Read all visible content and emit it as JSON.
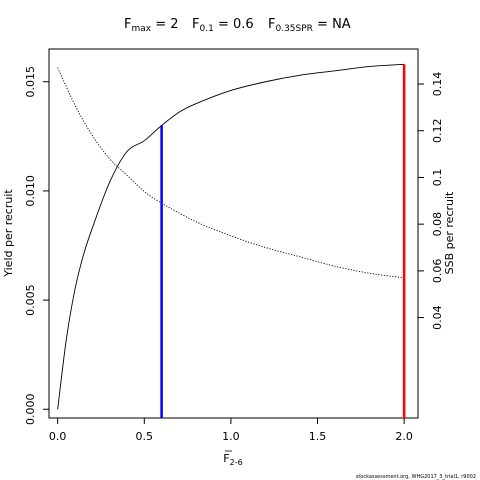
{
  "header": {
    "fmax": {
      "base": "F",
      "sub": "max",
      "rest": " = 2"
    },
    "f01": {
      "base": "F",
      "sub": "0.1",
      "rest": " = 0.6"
    },
    "fspr": {
      "base": "F",
      "sub": "0.35SPR",
      "rest": " = NA"
    }
  },
  "credit": "stockassessment.org, WHG2017_3_trial1, r9002",
  "chart_data": {
    "type": "line",
    "xlabel": {
      "base": "F",
      "sub": "2-6"
    },
    "ylabel": "Yield per recruit",
    "y2label": "SSB per recruit",
    "xlim": [
      -0.05,
      2.08
    ],
    "ylim": [
      -0.0004,
      0.0165
    ],
    "y2lim": [
      -0.003,
      0.155
    ],
    "x_ticks": [
      "0.0",
      "0.5",
      "1.0",
      "1.5",
      "2.0"
    ],
    "y_ticks": [
      "0.000",
      "0.005",
      "0.010",
      "0.015"
    ],
    "y2_ticks": [
      "0.04",
      "0.06",
      "0.08",
      "0.1",
      "0.12",
      "0.14"
    ],
    "series": [
      {
        "axis": "left",
        "style": "solid",
        "x": [
          0.0,
          0.05,
          0.1,
          0.15,
          0.2,
          0.3,
          0.4,
          0.5,
          0.6,
          0.7,
          0.8,
          1.0,
          1.2,
          1.4,
          1.6,
          1.8,
          2.0
        ],
        "values": [
          0.0,
          0.0032,
          0.0055,
          0.0071,
          0.0083,
          0.0104,
          0.0118,
          0.0123,
          0.013,
          0.0136,
          0.014,
          0.0146,
          0.015,
          0.0153,
          0.0155,
          0.0157,
          0.0158
        ]
      },
      {
        "axis": "right",
        "style": "dotted",
        "x": [
          0.0,
          0.1,
          0.2,
          0.3,
          0.4,
          0.5,
          0.6,
          0.8,
          1.0,
          1.2,
          1.4,
          1.6,
          1.8,
          2.0
        ],
        "values": [
          0.147,
          0.131,
          0.118,
          0.108,
          0.101,
          0.094,
          0.089,
          0.081,
          0.075,
          0.07,
          0.066,
          0.062,
          0.059,
          0.057
        ]
      }
    ],
    "vlines": [
      {
        "x": 0.6,
        "y": 0.013,
        "color": "#0000ff"
      },
      {
        "x": 2.0,
        "y": 0.0158,
        "color": "#ff0000"
      }
    ]
  }
}
